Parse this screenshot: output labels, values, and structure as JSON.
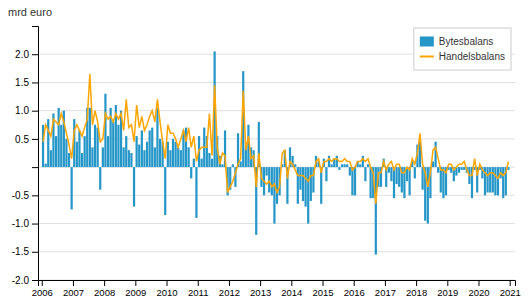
{
  "chart_data": {
    "type": "bar",
    "ylabel": "mrd euro",
    "x": [
      2006.041667,
      2006.125,
      2006.208333,
      2006.291667,
      2006.375,
      2006.458333,
      2006.541667,
      2006.625,
      2006.708333,
      2006.791667,
      2006.875,
      2006.958333,
      2007.041667,
      2007.125,
      2007.208333,
      2007.291667,
      2007.375,
      2007.458333,
      2007.541667,
      2007.625,
      2007.708333,
      2007.791667,
      2007.875,
      2007.958333,
      2008.041667,
      2008.125,
      2008.208333,
      2008.291667,
      2008.375,
      2008.458333,
      2008.541667,
      2008.625,
      2008.708333,
      2008.791667,
      2008.875,
      2008.958333,
      2009.041667,
      2009.125,
      2009.208333,
      2009.291667,
      2009.375,
      2009.458333,
      2009.541667,
      2009.625,
      2009.708333,
      2009.791667,
      2009.875,
      2009.958333,
      2010.041667,
      2010.125,
      2010.208333,
      2010.291667,
      2010.375,
      2010.458333,
      2010.541667,
      2010.625,
      2010.708333,
      2010.791667,
      2010.875,
      2010.958333,
      2011.041667,
      2011.125,
      2011.208333,
      2011.291667,
      2011.375,
      2011.458333,
      2011.541667,
      2011.625,
      2011.708333,
      2011.791667,
      2011.875,
      2011.958333,
      2012.041667,
      2012.125,
      2012.208333,
      2012.291667,
      2012.375,
      2012.458333,
      2012.541667,
      2012.625,
      2012.708333,
      2012.791667,
      2012.875,
      2012.958333,
      2013.041667,
      2013.125,
      2013.208333,
      2013.291667,
      2013.375,
      2013.458333,
      2013.541667,
      2013.625,
      2013.708333,
      2013.791667,
      2013.875,
      2013.958333,
      2014.041667,
      2014.125,
      2014.208333,
      2014.291667,
      2014.375,
      2014.458333,
      2014.541667,
      2014.625,
      2014.708333,
      2014.791667,
      2014.875,
      2014.958333,
      2015.041667,
      2015.125,
      2015.208333,
      2015.291667,
      2015.375,
      2015.458333,
      2015.541667,
      2015.625,
      2015.708333,
      2015.791667,
      2015.875,
      2015.958333,
      2016.041667,
      2016.125,
      2016.208333,
      2016.291667,
      2016.375,
      2016.458333,
      2016.541667,
      2016.625,
      2016.708333,
      2016.791667,
      2016.875,
      2016.958333,
      2017.041667,
      2017.125,
      2017.208333,
      2017.291667,
      2017.375,
      2017.458333,
      2017.541667,
      2017.625,
      2017.708333,
      2017.791667,
      2017.875,
      2017.958333,
      2018.041667,
      2018.125,
      2018.208333,
      2018.291667,
      2018.375,
      2018.458333,
      2018.541667,
      2018.625,
      2018.708333,
      2018.791667,
      2018.875,
      2018.958333,
      2019.041667,
      2019.125,
      2019.208333,
      2019.291667,
      2019.375,
      2019.458333,
      2019.541667,
      2019.625,
      2019.708333,
      2019.791667,
      2019.875,
      2019.958333,
      2020.041667,
      2020.125,
      2020.208333,
      2020.291667,
      2020.375,
      2020.458333,
      2020.541667,
      2020.625,
      2020.708333,
      2020.791667,
      2020.875,
      2020.958333
    ],
    "series": [
      {
        "name": "Bytesbalans",
        "type": "bar",
        "color": "#2596C8",
        "values": [
          0.75,
          0.06,
          0.85,
          0.3,
          0.95,
          0.55,
          1.05,
          0.75,
          1.0,
          0.5,
          0.25,
          -0.75,
          0.85,
          0.45,
          0.65,
          0.25,
          0.55,
          1.05,
          1.05,
          0.35,
          0.75,
          0.7,
          -0.4,
          0.35,
          1.3,
          0.55,
          1.05,
          0.8,
          1.1,
          0.75,
          1.0,
          0.35,
          0.55,
          0.3,
          0.25,
          -0.7,
          0.55,
          0.4,
          0.65,
          0.3,
          0.45,
          0.65,
          0.7,
          0.35,
          1.05,
          0.5,
          0.45,
          -0.85,
          0.45,
          0.3,
          0.5,
          0.45,
          0.35,
          0.3,
          0.65,
          0.7,
          0.35,
          -0.2,
          0.15,
          -0.9,
          0.55,
          0.15,
          0.7,
          0.55,
          0.25,
          0.15,
          2.05,
          0.55,
          0.2,
          0.05,
          0.65,
          -0.5,
          -0.4,
          0.05,
          -0.35,
          0.6,
          0.1,
          1.7,
          0.35,
          0.75,
          0.35,
          0.3,
          -1.2,
          0.8,
          -0.35,
          -0.5,
          -0.15,
          -0.45,
          -0.5,
          -1.0,
          -0.65,
          -0.5,
          0.05,
          0.3,
          -0.65,
          0.35,
          0.2,
          0.05,
          -0.65,
          -0.4,
          -0.6,
          -0.7,
          -1.0,
          -0.6,
          -0.45,
          0.2,
          0.1,
          -0.65,
          0.15,
          -0.25,
          0.2,
          0.05,
          0.15,
          0.2,
          -0.05,
          0.05,
          0.05,
          0.05,
          -0.15,
          -0.5,
          -0.5,
          0.1,
          0.05,
          0.2,
          -0.25,
          0.05,
          -0.55,
          -0.55,
          -1.55,
          -0.35,
          -0.35,
          0.15,
          -0.35,
          -0.1,
          -0.25,
          -0.55,
          -0.3,
          -0.35,
          -0.45,
          -0.55,
          -0.25,
          -0.5,
          0.1,
          -0.2,
          0.4,
          0.45,
          -0.4,
          -0.95,
          -1.0,
          -0.55,
          0.1,
          0.45,
          -0.1,
          -0.45,
          -0.55,
          -0.5,
          -0.05,
          -0.1,
          -0.25,
          -0.15,
          -0.1,
          -0.05,
          -0.05,
          -0.1,
          -0.3,
          -0.55,
          -0.05,
          -0.45,
          -0.05,
          -0.2,
          -0.5,
          -0.45,
          -0.45,
          -0.45,
          -0.5,
          -0.5,
          -0.2,
          -0.55,
          -0.5,
          -0.05
        ]
      },
      {
        "name": "Handelsbalans",
        "type": "line",
        "color": "#FFA500",
        "values": [
          0.45,
          0.75,
          0.65,
          0.55,
          0.85,
          0.8,
          0.75,
          0.95,
          0.8,
          0.6,
          0.4,
          0.15,
          0.65,
          0.75,
          0.65,
          0.55,
          0.7,
          0.85,
          1.65,
          0.75,
          1.0,
          0.8,
          0.45,
          0.5,
          0.95,
          0.85,
          0.9,
          0.8,
          0.95,
          0.85,
          0.95,
          0.65,
          1.2,
          0.7,
          0.75,
          0.45,
          1.1,
          0.7,
          0.9,
          0.65,
          0.75,
          0.9,
          1.0,
          0.8,
          1.2,
          0.8,
          0.45,
          0.15,
          0.75,
          0.6,
          0.6,
          0.5,
          0.35,
          0.5,
          0.65,
          0.45,
          0.7,
          0.35,
          0.55,
          0.1,
          0.3,
          0.35,
          0.35,
          0.35,
          0.95,
          0.2,
          1.45,
          0.35,
          0.05,
          0.25,
          0.2,
          -0.45,
          -0.35,
          -0.25,
          -0.1,
          0.05,
          0.15,
          1.35,
          0.3,
          0.55,
          0.15,
          0.2,
          -0.35,
          0.25,
          -0.2,
          -0.25,
          -0.3,
          -0.25,
          -0.35,
          -0.3,
          -0.45,
          -0.35,
          0.25,
          0.3,
          -0.2,
          0.1,
          0.05,
          -0.05,
          -0.15,
          -0.15,
          -0.15,
          -0.2,
          -0.25,
          -0.15,
          -0.15,
          0.1,
          0.15,
          -0.1,
          0.1,
          0.1,
          0.15,
          0.1,
          0.15,
          0.15,
          0.1,
          0.1,
          0.15,
          0.1,
          0.1,
          -0.05,
          0.0,
          0.1,
          0.1,
          0.15,
          0.1,
          0.15,
          0.0,
          -0.1,
          -0.65,
          -0.1,
          -0.1,
          0.1,
          -0.05,
          0.05,
          0.1,
          -0.05,
          0.05,
          0.05,
          -0.1,
          -0.1,
          0.0,
          -0.05,
          0.15,
          0.05,
          0.25,
          0.6,
          0.05,
          -0.1,
          -0.35,
          -0.1,
          0.3,
          0.35,
          0.15,
          -0.05,
          -0.05,
          -0.1,
          0.05,
          0.05,
          -0.05,
          0.0,
          0.05,
          0.05,
          0.1,
          -0.05,
          -0.15,
          -0.15,
          0.15,
          -0.15,
          0.05,
          -0.05,
          -0.1,
          -0.15,
          -0.1,
          -0.1,
          -0.15,
          -0.2,
          -0.1,
          -0.15,
          -0.1,
          0.1
        ]
      }
    ],
    "xlim": [
      2005.88,
      2021.17
    ],
    "xticks": [
      2006,
      2007,
      2008,
      2009,
      2010,
      2011,
      2012,
      2013,
      2014,
      2015,
      2016,
      2017,
      2018,
      2019,
      2020,
      2021
    ],
    "ylim": [
      -2.0,
      2.5
    ],
    "yticks": [
      {
        "value": -2.0,
        "label": "-2.0"
      },
      {
        "value": -1.5,
        "label": "-1.5"
      },
      {
        "value": -1.0,
        "label": "-1.0"
      },
      {
        "value": -0.5,
        "label": "-0.5"
      },
      {
        "value": 0.0,
        "label": null
      },
      {
        "value": 0.5,
        "label": "0.5"
      },
      {
        "value": 1.0,
        "label": "1.0"
      },
      {
        "value": 1.5,
        "label": "1.5"
      },
      {
        "value": 2.0,
        "label": "2.0"
      }
    ],
    "grid": true,
    "legend": "upper right"
  }
}
